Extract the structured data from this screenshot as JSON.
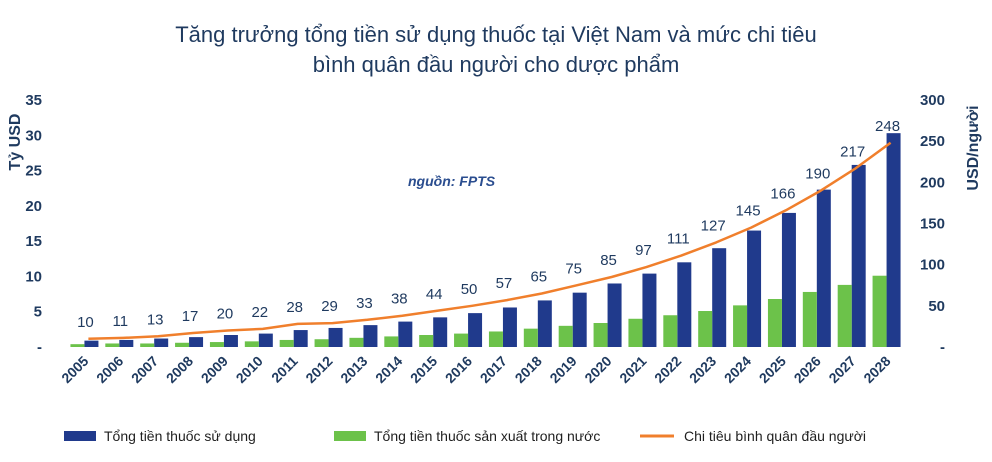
{
  "chart_data": {
    "type": "bar",
    "title_line1": "Tăng trưởng tổng tiền sử dụng thuốc tại Việt Nam và mức chi tiêu",
    "title_line2": "bình quân đầu người cho dược phẩm",
    "source_note": "nguồn: FPTS",
    "ylabel_left": "Tỷ USD",
    "ylabel_right": "USD/người",
    "ylim_left": [
      0,
      35
    ],
    "ylim_right": [
      0,
      300
    ],
    "yticks_left": [
      "-",
      "5",
      "10",
      "15",
      "20",
      "25",
      "30",
      "35"
    ],
    "yticks_right": [
      "-",
      "50",
      "100",
      "150",
      "200",
      "250",
      "300"
    ],
    "categories": [
      "2005",
      "2006",
      "2007",
      "2008",
      "2009",
      "2010",
      "2011",
      "2012",
      "2013",
      "2014",
      "2015",
      "2016",
      "2017",
      "2018",
      "2019",
      "2020",
      "2021",
      "2022",
      "2023",
      "2024",
      "2025",
      "2026",
      "2027",
      "2028"
    ],
    "series": [
      {
        "name": "Tổng tiền thuốc sử dụng",
        "axis": "left",
        "kind": "bar",
        "color": "#203a8c",
        "values": [
          0.9,
          1.0,
          1.2,
          1.4,
          1.7,
          1.9,
          2.4,
          2.7,
          3.1,
          3.6,
          4.2,
          4.8,
          5.6,
          6.6,
          7.7,
          9.0,
          10.4,
          12.0,
          14.0,
          16.5,
          19.0,
          22.3,
          25.8,
          30.3
        ]
      },
      {
        "name": "Tổng tiền thuốc sản xuất trong nước",
        "axis": "left",
        "kind": "bar",
        "color": "#6cc24a",
        "values": [
          0.4,
          0.5,
          0.5,
          0.6,
          0.7,
          0.8,
          1.0,
          1.1,
          1.3,
          1.5,
          1.7,
          1.9,
          2.2,
          2.6,
          3.0,
          3.4,
          4.0,
          4.5,
          5.1,
          5.9,
          6.8,
          7.8,
          8.8,
          10.1
        ]
      },
      {
        "name": "Chi tiêu bình quân đầu người",
        "axis": "right",
        "kind": "line",
        "color": "#f07f2c",
        "values": [
          10,
          11,
          13,
          17,
          20,
          22,
          28,
          29,
          33,
          38,
          44,
          50,
          57,
          65,
          75,
          85,
          97,
          111,
          127,
          145,
          166,
          190,
          217,
          248
        ],
        "labels": [
          "10",
          "11",
          "13",
          "17",
          "20",
          "22",
          "28",
          "29",
          "33",
          "38",
          "44",
          "50",
          "57",
          "65",
          "75",
          "85",
          "97",
          "111",
          "127",
          "145",
          "166",
          "190",
          "217",
          "248"
        ]
      }
    ],
    "legend_position": "bottom",
    "grid": false
  }
}
